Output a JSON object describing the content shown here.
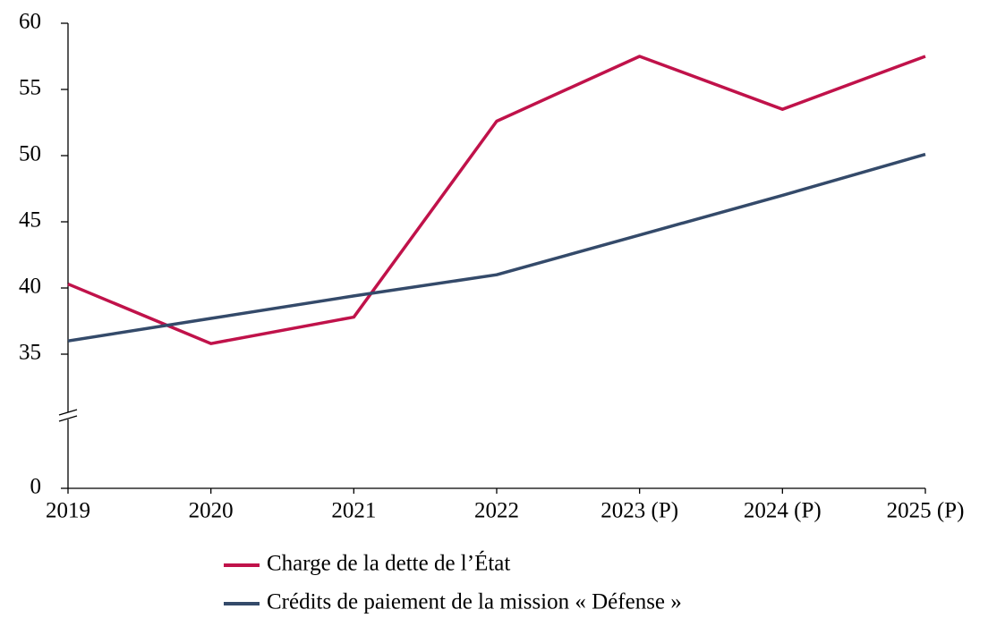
{
  "chart_data": {
    "type": "line",
    "categories": [
      "2019",
      "2020",
      "2021",
      "2022",
      "2023 (P)",
      "2024 (P)",
      "2025 (P)"
    ],
    "series": [
      {
        "name": "Charge de la dette de l’État",
        "color": "#c0124a",
        "values": [
          40.3,
          35.8,
          37.8,
          52.6,
          57.5,
          53.5,
          57.5
        ]
      },
      {
        "name": "Crédits de paiement de la mission «  Défense »",
        "color": "#344a6a",
        "values": [
          36.0,
          37.7,
          39.4,
          41.0,
          44.0,
          47.0,
          50.1
        ]
      }
    ],
    "ylim": [
      0,
      60
    ],
    "yticks": [
      0,
      35,
      40,
      45,
      50,
      55,
      60
    ],
    "y_axis_break": true,
    "grid": false,
    "legend": "bottom"
  }
}
